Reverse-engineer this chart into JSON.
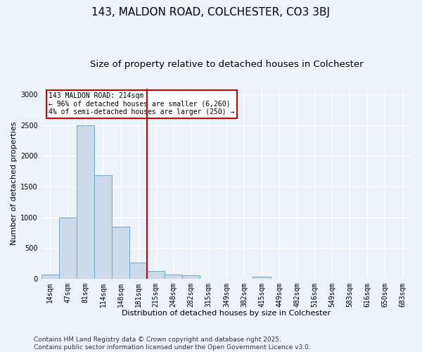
{
  "title1": "143, MALDON ROAD, COLCHESTER, CO3 3BJ",
  "title2": "Size of property relative to detached houses in Colchester",
  "xlabel": "Distribution of detached houses by size in Colchester",
  "ylabel": "Number of detached properties",
  "footnote": "Contains HM Land Registry data © Crown copyright and database right 2025.\nContains public sector information licensed under the Open Government Licence v3.0.",
  "categories": [
    "14sqm",
    "47sqm",
    "81sqm",
    "114sqm",
    "148sqm",
    "181sqm",
    "215sqm",
    "248sqm",
    "282sqm",
    "315sqm",
    "349sqm",
    "382sqm",
    "415sqm",
    "449sqm",
    "482sqm",
    "516sqm",
    "549sqm",
    "583sqm",
    "616sqm",
    "650sqm",
    "683sqm"
  ],
  "values": [
    60,
    1000,
    2500,
    1680,
    850,
    260,
    120,
    65,
    55,
    0,
    0,
    0,
    30,
    0,
    0,
    0,
    0,
    0,
    0,
    0,
    0
  ],
  "bar_color": "#ccd9e8",
  "bar_edge_color": "#6aaad4",
  "vline_x_index": 6,
  "vline_color": "#cc0000",
  "annotation_text": "143 MALDON ROAD: 214sqm\n← 96% of detached houses are smaller (6,260)\n4% of semi-detached houses are larger (250) →",
  "annotation_box_color": "#ffffff",
  "annotation_box_edge": "#cc0000",
  "ylim": [
    0,
    3100
  ],
  "yticks": [
    0,
    500,
    1000,
    1500,
    2000,
    2500,
    3000
  ],
  "background_color": "#edf2f9",
  "grid_color": "#ffffff",
  "title_fontsize": 11,
  "subtitle_fontsize": 9.5,
  "tick_fontsize": 7,
  "label_fontsize": 8,
  "footnote_fontsize": 6.5
}
